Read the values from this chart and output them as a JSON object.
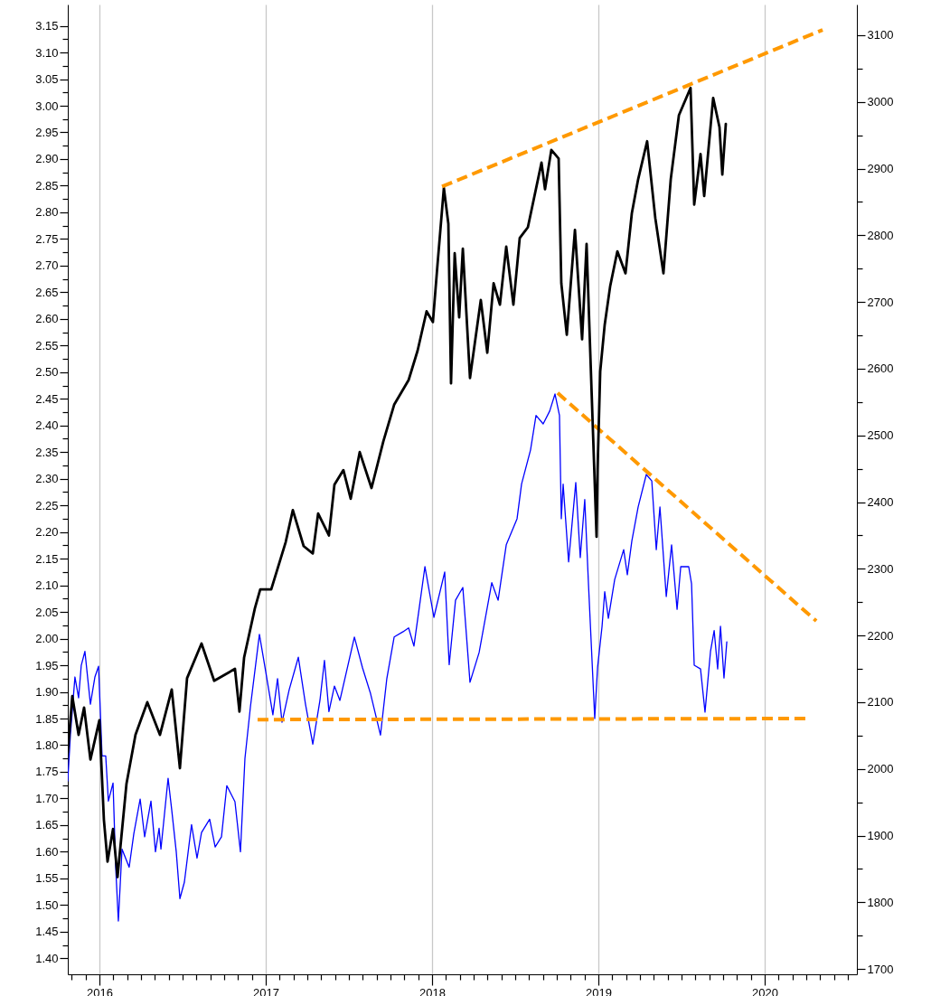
{
  "chart_data": {
    "type": "line",
    "grid": "x",
    "xlim": [
      2015.81,
      2020.554
    ],
    "ylim": [
      1.37,
      3.19
    ],
    "y2lim": [
      1692,
      3146
    ],
    "xticks": [
      {
        "value": 2015.833,
        "label": null
      },
      {
        "value": 2015.917,
        "label": null
      },
      2016,
      {
        "value": 2016.083,
        "label": null
      },
      {
        "value": 2016.167,
        "label": null
      },
      {
        "value": 2016.25,
        "label": null
      },
      {
        "value": 2016.333,
        "label": null
      },
      {
        "value": 2016.417,
        "label": null
      },
      {
        "value": 2016.5,
        "label": null
      },
      {
        "value": 2016.583,
        "label": null
      },
      {
        "value": 2016.667,
        "label": null
      },
      {
        "value": 2016.75,
        "label": null
      },
      {
        "value": 2016.833,
        "label": null
      },
      {
        "value": 2016.917,
        "label": null
      },
      2017,
      {
        "value": 2017.083,
        "label": null
      },
      {
        "value": 2017.167,
        "label": null
      },
      {
        "value": 2017.25,
        "label": null
      },
      {
        "value": 2017.333,
        "label": null
      },
      {
        "value": 2017.417,
        "label": null
      },
      {
        "value": 2017.5,
        "label": null
      },
      {
        "value": 2017.583,
        "label": null
      },
      {
        "value": 2017.667,
        "label": null
      },
      {
        "value": 2017.75,
        "label": null
      },
      {
        "value": 2017.833,
        "label": null
      },
      {
        "value": 2017.917,
        "label": null
      },
      2018,
      {
        "value": 2018.083,
        "label": null
      },
      {
        "value": 2018.167,
        "label": null
      },
      {
        "value": 2018.25,
        "label": null
      },
      {
        "value": 2018.333,
        "label": null
      },
      {
        "value": 2018.417,
        "label": null
      },
      {
        "value": 2018.5,
        "label": null
      },
      {
        "value": 2018.583,
        "label": null
      },
      {
        "value": 2018.667,
        "label": null
      },
      {
        "value": 2018.75,
        "label": null
      },
      {
        "value": 2018.833,
        "label": null
      },
      {
        "value": 2018.917,
        "label": null
      },
      2019,
      {
        "value": 2019.083,
        "label": null
      },
      {
        "value": 2019.167,
        "label": null
      },
      {
        "value": 2019.25,
        "label": null
      },
      {
        "value": 2019.333,
        "label": null
      },
      {
        "value": 2019.417,
        "label": null
      },
      {
        "value": 2019.5,
        "label": null
      },
      {
        "value": 2019.583,
        "label": null
      },
      {
        "value": 2019.667,
        "label": null
      },
      {
        "value": 2019.75,
        "label": null
      },
      {
        "value": 2019.833,
        "label": null
      },
      {
        "value": 2019.917,
        "label": null
      },
      2020,
      {
        "value": 2020.083,
        "label": null
      },
      {
        "value": 2020.167,
        "label": null
      },
      {
        "value": 2020.25,
        "label": null
      },
      {
        "value": 2020.333,
        "label": null
      },
      {
        "value": 2020.417,
        "label": null
      },
      {
        "value": 2020.5,
        "label": null
      }
    ],
    "yticks": [
      {
        "value": 1.4,
        "label": "1.40"
      },
      {
        "value": 1.425,
        "label": null
      },
      {
        "value": 1.45,
        "label": "1.45"
      },
      {
        "value": 1.475,
        "label": null
      },
      {
        "value": 1.5,
        "label": "1.50"
      },
      {
        "value": 1.525,
        "label": null
      },
      {
        "value": 1.55,
        "label": "1.55"
      },
      {
        "value": 1.575,
        "label": null
      },
      {
        "value": 1.6,
        "label": "1.60"
      },
      {
        "value": 1.625,
        "label": null
      },
      {
        "value": 1.65,
        "label": "1.65"
      },
      {
        "value": 1.675,
        "label": null
      },
      {
        "value": 1.7,
        "label": "1.70"
      },
      {
        "value": 1.725,
        "label": null
      },
      {
        "value": 1.75,
        "label": "1.75"
      },
      {
        "value": 1.775,
        "label": null
      },
      {
        "value": 1.8,
        "label": "1.80"
      },
      {
        "value": 1.825,
        "label": null
      },
      {
        "value": 1.85,
        "label": "1.85"
      },
      {
        "value": 1.875,
        "label": null
      },
      {
        "value": 1.9,
        "label": "1.90"
      },
      {
        "value": 1.925,
        "label": null
      },
      {
        "value": 1.95,
        "label": "1.95"
      },
      {
        "value": 1.975,
        "label": null
      },
      {
        "value": 2.0,
        "label": "2.00"
      },
      {
        "value": 2.025,
        "label": null
      },
      {
        "value": 2.05,
        "label": "2.05"
      },
      {
        "value": 2.075,
        "label": null
      },
      {
        "value": 2.1,
        "label": "2.10"
      },
      {
        "value": 2.125,
        "label": null
      },
      {
        "value": 2.15,
        "label": "2.15"
      },
      {
        "value": 2.175,
        "label": null
      },
      {
        "value": 2.2,
        "label": "2.20"
      },
      {
        "value": 2.225,
        "label": null
      },
      {
        "value": 2.25,
        "label": "2.25"
      },
      {
        "value": 2.275,
        "label": null
      },
      {
        "value": 2.3,
        "label": "2.30"
      },
      {
        "value": 2.325,
        "label": null
      },
      {
        "value": 2.35,
        "label": "2.35"
      },
      {
        "value": 2.375,
        "label": null
      },
      {
        "value": 2.4,
        "label": "2.40"
      },
      {
        "value": 2.425,
        "label": null
      },
      {
        "value": 2.45,
        "label": "2.45"
      },
      {
        "value": 2.475,
        "label": null
      },
      {
        "value": 2.5,
        "label": "2.50"
      },
      {
        "value": 2.525,
        "label": null
      },
      {
        "value": 2.55,
        "label": "2.55"
      },
      {
        "value": 2.575,
        "label": null
      },
      {
        "value": 2.6,
        "label": "2.60"
      },
      {
        "value": 2.625,
        "label": null
      },
      {
        "value": 2.65,
        "label": "2.65"
      },
      {
        "value": 2.675,
        "label": null
      },
      {
        "value": 2.7,
        "label": "2.70"
      },
      {
        "value": 2.725,
        "label": null
      },
      {
        "value": 2.75,
        "label": "2.75"
      },
      {
        "value": 2.775,
        "label": null
      },
      {
        "value": 2.8,
        "label": "2.80"
      },
      {
        "value": 2.825,
        "label": null
      },
      {
        "value": 2.85,
        "label": "2.85"
      },
      {
        "value": 2.875,
        "label": null
      },
      {
        "value": 2.9,
        "label": "2.90"
      },
      {
        "value": 2.925,
        "label": null
      },
      {
        "value": 2.95,
        "label": "2.95"
      },
      {
        "value": 2.975,
        "label": null
      },
      {
        "value": 3.0,
        "label": "3.00"
      },
      {
        "value": 3.025,
        "label": null
      },
      {
        "value": 3.05,
        "label": "3.05"
      },
      {
        "value": 3.075,
        "label": null
      },
      {
        "value": 3.1,
        "label": "3.10"
      },
      {
        "value": 3.125,
        "label": null
      },
      {
        "value": 3.15,
        "label": "3.15"
      }
    ],
    "y2ticks": [
      1700,
      {
        "value": 1750,
        "label": null
      },
      1800,
      {
        "value": 1850,
        "label": null
      },
      1900,
      {
        "value": 1950,
        "label": null
      },
      2000,
      {
        "value": 2050,
        "label": null
      },
      2100,
      {
        "value": 2150,
        "label": null
      },
      2200,
      {
        "value": 2250,
        "label": null
      },
      2300,
      {
        "value": 2350,
        "label": null
      },
      2400,
      {
        "value": 2450,
        "label": null
      },
      2500,
      {
        "value": 2550,
        "label": null
      },
      2600,
      {
        "value": 2650,
        "label": null
      },
      2700,
      {
        "value": 2750,
        "label": null
      },
      2800,
      {
        "value": 2850,
        "label": null
      },
      2900,
      {
        "value": 2950,
        "label": null
      },
      3000,
      {
        "value": 3050,
        "label": null
      },
      3100
    ],
    "series": [
      {
        "color": "#0000ff",
        "x": [
          2015.81,
          2015.826,
          2015.853,
          2015.875,
          2015.891,
          2015.913,
          2015.946,
          2015.973,
          2015.995,
          2016.016,
          2016.038,
          2016.054,
          2016.082,
          2016.098,
          2016.114,
          2016.136,
          2016.179,
          2016.207,
          2016.245,
          2016.272,
          2016.31,
          2016.337,
          2016.359,
          2016.37,
          2016.413,
          2016.435,
          2016.462,
          2016.484,
          2016.511,
          2016.554,
          2016.587,
          2016.614,
          2016.663,
          2016.696,
          2016.734,
          2016.766,
          2016.815,
          2016.848,
          2016.875,
          2016.908,
          2016.962,
          2017.0,
          2017.043,
          2017.071,
          2017.098,
          2017.141,
          2017.196,
          2017.239,
          2017.283,
          2017.326,
          2017.353,
          2017.38,
          2017.413,
          2017.446,
          2017.533,
          2017.582,
          2017.63,
          2017.69,
          2017.728,
          2017.772,
          2017.826,
          2017.859,
          2017.891,
          2017.924,
          2017.957,
          2018.011,
          2018.076,
          2018.103,
          2018.141,
          2018.185,
          2018.228,
          2018.283,
          2018.359,
          2018.397,
          2018.446,
          2018.511,
          2018.538,
          2018.592,
          2018.625,
          2018.668,
          2018.707,
          2018.739,
          2018.766,
          2018.777,
          2018.788,
          2018.821,
          2018.864,
          2018.891,
          2018.918,
          2018.94,
          2018.978,
          2018.995,
          2019.022,
          2019.038,
          2019.06,
          2019.098,
          2019.152,
          2019.174,
          2019.201,
          2019.239,
          2019.288,
          2019.321,
          2019.348,
          2019.37,
          2019.408,
          2019.44,
          2019.473,
          2019.495,
          2019.543,
          2019.56,
          2019.576,
          2019.614,
          2019.641,
          2019.674,
          2019.696,
          2019.717,
          2019.734,
          2019.755,
          2019.772
        ],
        "values": [
          1.733,
          1.821,
          1.928,
          1.889,
          1.95,
          1.976,
          1.877,
          1.928,
          1.948,
          1.78,
          1.78,
          1.695,
          1.729,
          1.571,
          1.47,
          1.605,
          1.571,
          1.634,
          1.699,
          1.628,
          1.695,
          1.6,
          1.644,
          1.605,
          1.738,
          1.678,
          1.6,
          1.512,
          1.543,
          1.651,
          1.588,
          1.636,
          1.661,
          1.609,
          1.628,
          1.724,
          1.694,
          1.6,
          1.775,
          1.872,
          2.008,
          1.938,
          1.857,
          1.925,
          1.843,
          1.904,
          1.965,
          1.877,
          1.802,
          1.884,
          1.959,
          1.863,
          1.911,
          1.884,
          2.003,
          1.945,
          1.897,
          1.819,
          1.925,
          2.003,
          2.013,
          2.02,
          1.986,
          2.06,
          2.135,
          2.04,
          2.125,
          1.951,
          2.072,
          2.096,
          1.918,
          1.974,
          2.105,
          2.072,
          2.176,
          2.225,
          2.29,
          2.354,
          2.419,
          2.403,
          2.427,
          2.459,
          2.419,
          2.225,
          2.29,
          2.144,
          2.293,
          2.152,
          2.261,
          2.105,
          1.85,
          1.946,
          2.023,
          2.088,
          2.038,
          2.111,
          2.167,
          2.12,
          2.183,
          2.247,
          2.308,
          2.296,
          2.167,
          2.247,
          2.079,
          2.176,
          2.055,
          2.135,
          2.135,
          2.103,
          1.95,
          1.943,
          1.862,
          1.976,
          2.015,
          1.943,
          2.023,
          1.926,
          1.994
        ]
      },
      {
        "color": "#ff9900",
        "line_style": "dashed",
        "x": [
          2018.755,
          2020.31
        ],
        "values": [
          2.461,
          2.033
        ]
      },
      {
        "color": "#ff9900",
        "line_style": "dashed",
        "x": [
          2016.951,
          2020.255
        ],
        "values": [
          1.848,
          1.85
        ]
      },
      {
        "axis": "y2",
        "color": "#000000",
        "x": [
          2015.81,
          2015.837,
          2015.875,
          2015.908,
          2015.946,
          2016.0,
          2016.027,
          2016.049,
          2016.082,
          2016.109,
          2016.163,
          2016.217,
          2016.288,
          2016.364,
          2016.435,
          2016.484,
          2016.527,
          2016.614,
          2016.69,
          2016.815,
          2016.842,
          2016.87,
          2016.935,
          2016.967,
          2017.033,
          2017.12,
          2017.163,
          2017.228,
          2017.283,
          2017.315,
          2017.38,
          2017.413,
          2017.467,
          2017.511,
          2017.565,
          2017.636,
          2017.707,
          2017.772,
          2017.859,
          2017.913,
          2017.967,
          2018.005,
          2018.033,
          2018.071,
          2018.098,
          2018.114,
          2018.136,
          2018.163,
          2018.185,
          2018.228,
          2018.293,
          2018.332,
          2018.37,
          2018.408,
          2018.446,
          2018.489,
          2018.527,
          2018.576,
          2018.658,
          2018.679,
          2018.717,
          2018.761,
          2018.777,
          2018.81,
          2018.859,
          2018.902,
          2018.929,
          2018.951,
          2018.989,
          2018.995,
          2019.011,
          2019.038,
          2019.071,
          2019.114,
          2019.163,
          2019.201,
          2019.239,
          2019.293,
          2019.342,
          2019.391,
          2019.435,
          2019.484,
          2019.554,
          2019.576,
          2019.614,
          2019.636,
          2019.69,
          2019.728,
          2019.745,
          2019.766
        ],
        "values": [
          2024,
          2109,
          2051,
          2092,
          2014,
          2073,
          1924,
          1861,
          1910,
          1838,
          1978,
          2051,
          2100,
          2051,
          2119,
          2001,
          2136,
          2188,
          2132,
          2150,
          2086,
          2167,
          2241,
          2269,
          2269,
          2340,
          2388,
          2334,
          2323,
          2383,
          2350,
          2426,
          2448,
          2405,
          2475,
          2421,
          2491,
          2546,
          2583,
          2627,
          2686,
          2670,
          2757,
          2871,
          2817,
          2578,
          2773,
          2677,
          2780,
          2586,
          2703,
          2624,
          2728,
          2696,
          2783,
          2696,
          2796,
          2812,
          2909,
          2869,
          2928,
          2915,
          2728,
          2651,
          2808,
          2644,
          2787,
          2625,
          2348,
          2449,
          2596,
          2666,
          2724,
          2776,
          2743,
          2833,
          2884,
          2941,
          2826,
          2743,
          2884,
          2980,
          3021,
          2846,
          2922,
          2859,
          3006,
          2962,
          2891,
          2967
        ]
      },
      {
        "axis": "y2",
        "color": "#ff9900",
        "line_style": "dashed",
        "x": [
          2018.06,
          2020.348
        ],
        "values": [
          2873,
          3108
        ]
      }
    ]
  }
}
